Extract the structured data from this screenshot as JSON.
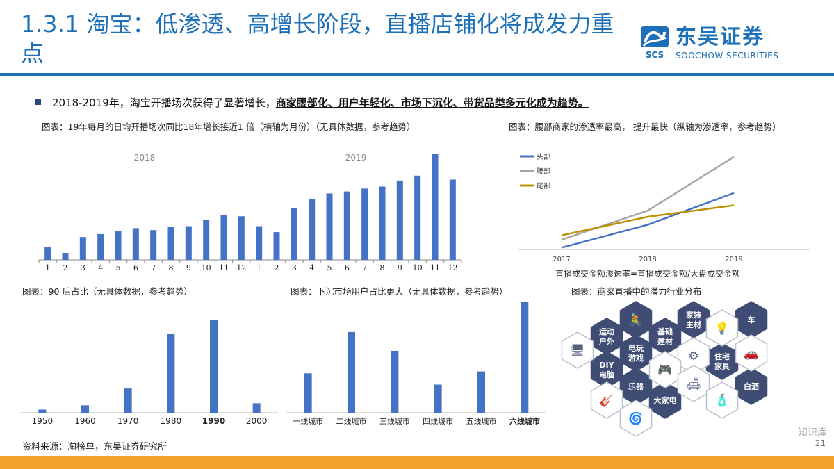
{
  "header": {
    "title": "1.3.1 淘宝：低渗透、高增长阶段，直播店铺化将成发力重点",
    "logo_mark_text": "SCS",
    "logo_cn": "东吴证券",
    "logo_en": "SOOCHOW SECURITIES"
  },
  "bullet": {
    "text_plain": "2018-2019年，淘宝开播场次获得了显著增长，",
    "text_bold": "商家腰部化、用户年轻化、市场下沉化、带货品类多元化成为趋势。"
  },
  "captions": {
    "chart1": "图表：19年每月的日均开播场次同比18年增长接近1 倍（横轴为月份）（无具体数据，参考趋势）",
    "chart2": "图表：腰部商家的渗透率最高， 提升最快（纵轴为渗透率，参考趋势）",
    "chart3": "图表：90 后占比（无具体数据，参考趋势）",
    "chart4": "图表：下沉市场用户占比更大（无具体数据，参考趋势）",
    "chart5": "图表：商家直播中的潜力行业分布"
  },
  "source": "资料来源：淘榜单，东吴证券研究所",
  "page_number": "21",
  "watermark": "知识库",
  "colors": {
    "accent": "#1d6fb8",
    "bar": "#4472c4",
    "footer": "#f4a12c",
    "hex_dark": "#3f4d74"
  },
  "chart_data": [
    {
      "type": "bar",
      "title": "",
      "group_labels": [
        "2018",
        "2019"
      ],
      "categories": [
        "1",
        "2",
        "3",
        "4",
        "5",
        "6",
        "7",
        "8",
        "9",
        "10",
        "11",
        "12",
        "1",
        "2",
        "3",
        "4",
        "5",
        "6",
        "7",
        "8",
        "9",
        "10",
        "11",
        "12"
      ],
      "values": [
        13,
        7,
        23,
        26,
        29,
        32,
        30,
        33,
        34,
        40,
        45,
        44,
        34,
        28,
        52,
        61,
        67,
        69,
        72,
        74,
        80,
        85,
        107,
        81
      ],
      "ylim": [
        0,
        115
      ]
    },
    {
      "type": "line",
      "title": "",
      "x": [
        "2017",
        "2018",
        "2019"
      ],
      "xlabel": "直播成交金额渗透率=直播成交金额/大盘成交金额",
      "legend": "top-left",
      "series": [
        {
          "name": "头部",
          "color": "#4472c4",
          "values": [
            2,
            28,
            64
          ]
        },
        {
          "name": "腰部",
          "color": "#a5a5a5",
          "values": [
            11,
            44,
            105
          ]
        },
        {
          "name": "尾部",
          "color": "#bf9000",
          "values": [
            16,
            37,
            50
          ]
        }
      ],
      "ylim": [
        0,
        115
      ]
    },
    {
      "type": "bar",
      "title": "",
      "categories": [
        "1950",
        "1960",
        "1970",
        "1980",
        "1990",
        "2000"
      ],
      "highlight": "1990",
      "values": [
        3,
        7,
        23,
        75,
        88,
        9
      ],
      "ylim": [
        0,
        95
      ]
    },
    {
      "type": "bar",
      "title": "",
      "categories": [
        "一线城市",
        "二线城市",
        "三线城市",
        "四线城市",
        "五线城市",
        "六线城市"
      ],
      "highlight": "六线城市",
      "values": [
        42,
        86,
        66,
        30,
        44,
        118
      ],
      "ylim": [
        0,
        120
      ]
    }
  ],
  "hex_cloud": [
    {
      "label": "家装\n主材",
      "dark": true
    },
    {
      "label": "车",
      "dark": true
    },
    {
      "label": "运动\n户外",
      "dark": true
    },
    {
      "label": "基础\n建材",
      "dark": true
    },
    {
      "label": "电玩\n游戏",
      "dark": true
    },
    {
      "label": "DIY\n电脑",
      "dark": true
    },
    {
      "label": "住宅\n家具",
      "dark": true
    },
    {
      "label": "乐器",
      "dark": true
    },
    {
      "label": "白酒",
      "dark": true
    },
    {
      "label": "大家电",
      "dark": true
    },
    {
      "label": "",
      "dark": true,
      "icon": "cyclist-icon"
    },
    {
      "label": "",
      "dark": false,
      "icon": "monitor-icon"
    },
    {
      "label": "",
      "dark": false,
      "icon": "lamp-icon"
    },
    {
      "label": "",
      "dark": false,
      "icon": "car-wash-icon"
    },
    {
      "label": "",
      "dark": false,
      "icon": "pipe-icon"
    },
    {
      "label": "",
      "dark": false,
      "icon": "gamepad-icon"
    },
    {
      "label": "",
      "dark": false,
      "icon": "sofa-icon"
    },
    {
      "label": "",
      "dark": false,
      "icon": "guitar-icon"
    },
    {
      "label": "",
      "dark": false,
      "icon": "bottle-icon"
    },
    {
      "label": "",
      "dark": false,
      "icon": "washer-icon"
    }
  ]
}
